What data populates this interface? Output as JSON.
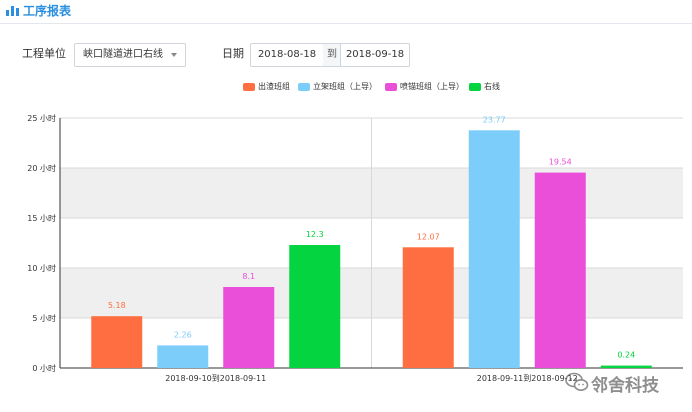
{
  "header": {
    "title": "工序报表",
    "icon": "bar-chart-icon"
  },
  "filters": {
    "unit_label": "工程单位",
    "unit_value": "峡口隧道进口右线",
    "date_label": "日期",
    "date_start": "2018-08-18",
    "date_sep": "到",
    "date_end": "2018-09-18"
  },
  "colors": {
    "accent": "#2a8fe0",
    "series": [
      "#ff6e40",
      "#7dcdfb",
      "#e94fd8",
      "#05d441"
    ]
  },
  "chart_data": {
    "type": "bar",
    "categories": [
      "2018-09-10到2018-09-11",
      "2018-09-11到2018-09-12"
    ],
    "series": [
      {
        "name": "出渣班组",
        "values": [
          5.18,
          12.07
        ]
      },
      {
        "name": "立架班组（上导）",
        "values": [
          2.26,
          23.77
        ]
      },
      {
        "name": "喷锚班组（上导）",
        "values": [
          8.1,
          19.54
        ]
      },
      {
        "name": "右线",
        "values": [
          12.3,
          0.24
        ]
      }
    ],
    "ylim": [
      0,
      25
    ],
    "yticks": [
      "0 小时",
      "5 小时",
      "10 小时",
      "15 小时",
      "20 小时",
      "25 小时"
    ],
    "grid": true,
    "legend_position": "top-center"
  },
  "watermark": {
    "text": "邻舍科技",
    "icon": "wechat-icon"
  }
}
